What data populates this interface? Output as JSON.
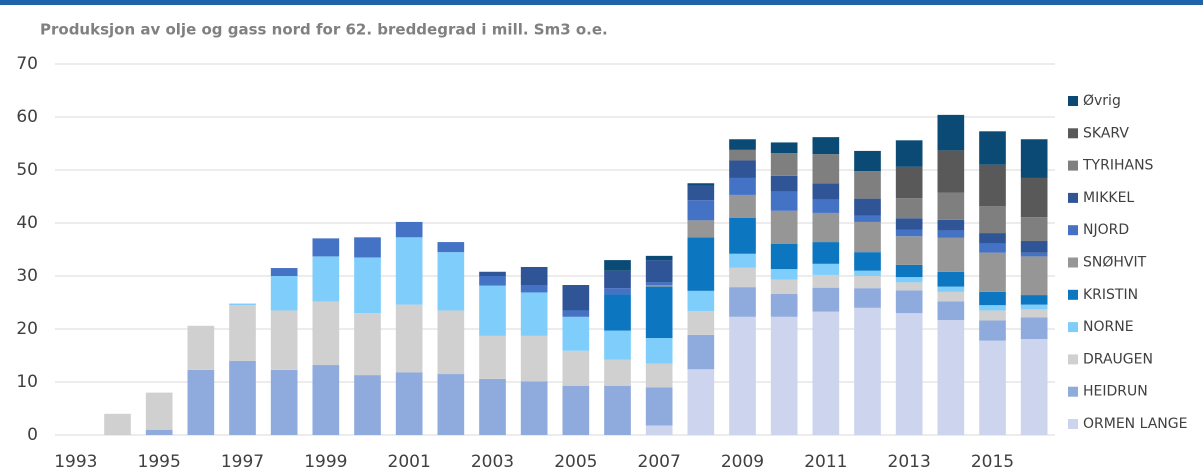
{
  "chart_data": {
    "type": "stacked_bar",
    "title": "Produksjon av olje og gass nord for 62. breddegrad  i mill. Sm3 o.e.",
    "categories": [
      "1993",
      null,
      "1995",
      null,
      "1997",
      null,
      "1999",
      null,
      "2001",
      null,
      "2003",
      null,
      "2005",
      null,
      "2007",
      null,
      "2009",
      null,
      "2011",
      null,
      "2013",
      null,
      "2015",
      null
    ],
    "series": [
      {
        "name": "ORMEN LANGE",
        "color": "#cdd5ee",
        "values": [
          0,
          0,
          0,
          0,
          0,
          0,
          0,
          0,
          0,
          0,
          0,
          0,
          0,
          0,
          1.8,
          12.4,
          22.3,
          22.3,
          23.3,
          24,
          23,
          21.7,
          17.8,
          18.1
        ]
      },
      {
        "name": "HEIDRUN",
        "color": "#8faadc",
        "values": [
          0,
          0,
          1,
          12.3,
          14,
          12.3,
          13.2,
          11.3,
          11.8,
          11.5,
          10.6,
          10.1,
          9.3,
          9.3,
          7.2,
          6.5,
          5.6,
          4.3,
          4.5,
          3.7,
          4.3,
          3.5,
          3.8,
          4.1
        ]
      },
      {
        "name": "DRAUGEN",
        "color": "#d0d0d0",
        "values": [
          0,
          4,
          7,
          8.3,
          10.5,
          11.2,
          12,
          11.7,
          12.8,
          12,
          8.1,
          8.6,
          6.6,
          4.9,
          4.5,
          4.5,
          3.7,
          2.7,
          2.4,
          2.3,
          1.5,
          1.8,
          1.9,
          1.5
        ]
      },
      {
        "name": "NORNE",
        "color": "#7fcdfa",
        "values": [
          0,
          0,
          0,
          0,
          0.3,
          6.5,
          8.5,
          10.5,
          12.7,
          11,
          9.5,
          8.2,
          6.4,
          5.5,
          4.8,
          3.8,
          2.6,
          2,
          2.1,
          1,
          1,
          1,
          1,
          0.9
        ]
      },
      {
        "name": "KRISTIN",
        "color": "#0d76c0",
        "values": [
          0,
          0,
          0,
          0,
          0,
          0,
          0,
          0,
          0,
          0,
          0,
          0,
          0,
          6.8,
          9.7,
          10.1,
          6.8,
          4.8,
          4.1,
          3.5,
          2.3,
          2.8,
          2.5,
          1.8
        ]
      },
      {
        "name": "SNØHVIT",
        "color": "#969696",
        "values": [
          0,
          0,
          0,
          0,
          0,
          0,
          0,
          0,
          0,
          0,
          0,
          0,
          0,
          0,
          0.3,
          3.2,
          4.3,
          6.2,
          5.5,
          5.7,
          5.4,
          6.4,
          7.4,
          7.3
        ]
      },
      {
        "name": "NJORD",
        "color": "#4472c4",
        "values": [
          0,
          0,
          0,
          0,
          0,
          1.5,
          3.4,
          3.8,
          2.9,
          1.9,
          1.8,
          1.4,
          1.2,
          1.2,
          0.5,
          3.8,
          3.2,
          3.6,
          2.5,
          1.2,
          1.2,
          1.4,
          1.7,
          0.7
        ]
      },
      {
        "name": "MIKKEL",
        "color": "#2f5597",
        "values": [
          0,
          0,
          0,
          0,
          0,
          0,
          0,
          0,
          0,
          0,
          0.8,
          3.4,
          4.8,
          3.3,
          4.2,
          2.7,
          3.3,
          3,
          3.1,
          3.2,
          2.2,
          2,
          2,
          2.2
        ]
      },
      {
        "name": "TYRIHANS",
        "color": "#7f7f7f",
        "values": [
          0,
          0,
          0,
          0,
          0,
          0,
          0,
          0,
          0,
          0,
          0,
          0,
          0,
          0,
          0,
          0,
          2,
          4.3,
          5.5,
          5.2,
          3.8,
          5.1,
          5.1,
          4.5
        ]
      },
      {
        "name": "SKARV",
        "color": "#595959",
        "values": [
          0,
          0,
          0,
          0,
          0,
          0,
          0,
          0,
          0,
          0,
          0,
          0,
          0,
          0,
          0,
          0,
          0,
          0,
          0,
          0,
          5.9,
          8,
          7.8,
          7.4
        ]
      },
      {
        "name": "Øvrig",
        "color": "#0b4a74",
        "values": [
          0,
          0,
          0,
          0,
          0,
          0,
          0,
          0,
          0,
          0,
          0,
          0,
          0,
          2,
          0.8,
          0.5,
          2,
          2,
          3.2,
          3.8,
          5,
          6.7,
          6.3,
          7.3
        ]
      }
    ],
    "ylim": [
      0,
      70
    ],
    "yticks": [
      0,
      10,
      20,
      30,
      40,
      50,
      60,
      70
    ],
    "grid": true,
    "legend": "right"
  }
}
